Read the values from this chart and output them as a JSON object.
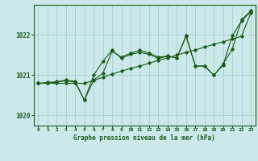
{
  "title": "Graphe pression niveau de la mer (hPa)",
  "xlabel_hours": [
    0,
    1,
    2,
    3,
    4,
    5,
    6,
    7,
    8,
    9,
    10,
    11,
    12,
    13,
    14,
    15,
    16,
    17,
    18,
    19,
    20,
    21,
    22,
    23
  ],
  "ylim": [
    1019.75,
    1022.75
  ],
  "yticks": [
    1020,
    1021,
    1022
  ],
  "background_color": "#cce8e8",
  "grid_color": "#99cccc",
  "line_color": "#1a5c1a",
  "line1": [
    1020.8,
    1020.82,
    1020.84,
    1020.88,
    1020.85,
    1020.38,
    1020.88,
    1021.05,
    1021.6,
    1021.45,
    1021.55,
    1021.62,
    1021.55,
    1021.45,
    1021.48,
    1021.43,
    1021.98,
    1021.23,
    1021.23,
    1021.0,
    1021.28,
    1021.65,
    1022.38,
    1022.6
  ],
  "line2": [
    1020.8,
    1020.8,
    1020.83,
    1020.86,
    1020.83,
    1020.38,
    1021.0,
    1021.35,
    1021.62,
    1021.42,
    1021.52,
    1021.57,
    1021.52,
    1021.42,
    1021.47,
    1021.43,
    1021.97,
    1021.23,
    1021.23,
    1021.0,
    1021.25,
    1021.98,
    1022.35,
    1022.58
  ],
  "line3": [
    1020.8,
    1020.8,
    1020.8,
    1020.8,
    1020.8,
    1020.8,
    1020.87,
    1020.95,
    1021.03,
    1021.1,
    1021.17,
    1021.23,
    1021.3,
    1021.37,
    1021.43,
    1021.5,
    1021.57,
    1021.63,
    1021.7,
    1021.77,
    1021.83,
    1021.9,
    1021.97,
    1022.55
  ]
}
